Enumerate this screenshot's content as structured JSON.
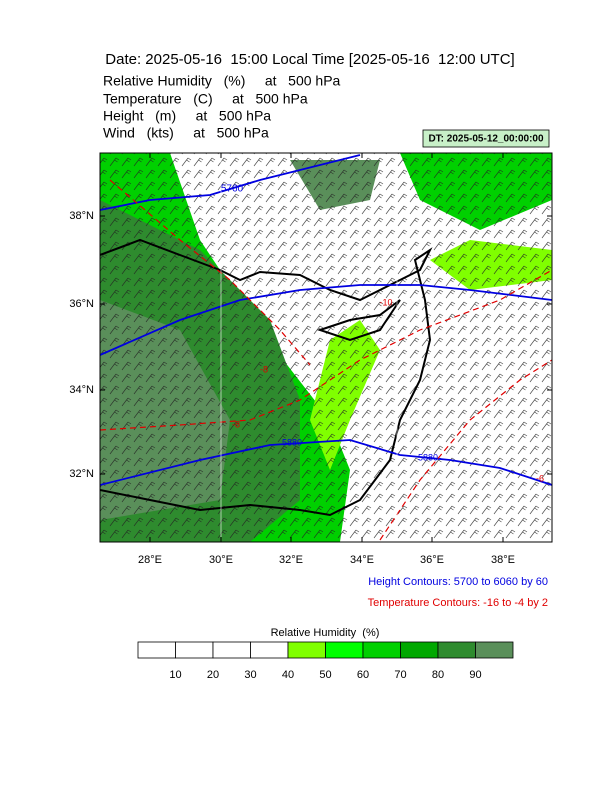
{
  "header": {
    "title": "Date: 2025-05-16  15:00 Local Time [2025-05-16  12:00 UTC]",
    "variables": [
      "Relative Humidity   (%)     at   500 hPa",
      "Temperature   (C)     at   500 hPa",
      "Height   (m)     at   500 hPa",
      "Wind   (kts)     at   500 hPa"
    ],
    "dt": "DT: 2025-05-12_00:00:00"
  },
  "map": {
    "lat_labels": [
      "38°N",
      "36°N",
      "34°N",
      "32°N"
    ],
    "lon_labels": [
      "28°E",
      "30°E",
      "32°E",
      "34°E",
      "36°E",
      "38°E"
    ],
    "contour_labels": [
      "5760",
      "5880",
      "5880",
      "-10",
      "-8",
      "-8",
      "-6"
    ]
  },
  "notes": {
    "height": "Height Contours: 5700 to 6060 by 60",
    "temperature": "Temperature Contours: -16 to -4 by 2"
  },
  "colorbar": {
    "title": "Relative Humidity  (%)",
    "labels": [
      "10",
      "20",
      "30",
      "40",
      "50",
      "60",
      "70",
      "80",
      "90"
    ],
    "colors": [
      "#ffffff",
      "#ffffff",
      "#ffffff",
      "#ffffff",
      "#80ff00",
      "#00ff00",
      "#00d000",
      "#00a800",
      "#2e8b2e",
      "#5a8f5a"
    ]
  }
}
